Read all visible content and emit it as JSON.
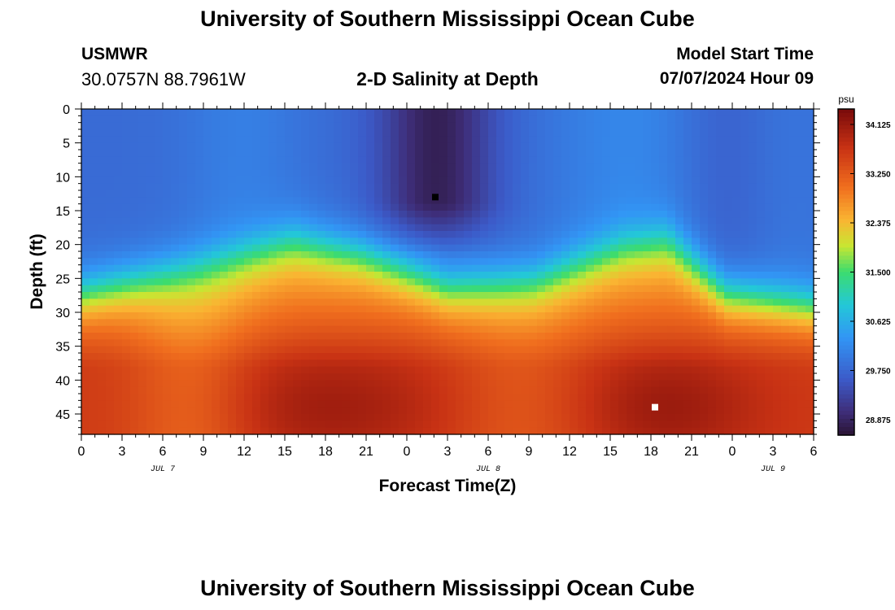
{
  "header": {
    "title": "University of Southern Mississippi Ocean Cube",
    "station_id": "USMWR",
    "station_coords": "30.0757N  88.7961W",
    "plot_title": "2-D Salinity at Depth",
    "start_label": "Model Start Time",
    "start_value": "07/07/2024 Hour 09"
  },
  "footer": {
    "title": "University of Southern Mississippi Ocean Cube"
  },
  "chart_data": {
    "type": "heatmap",
    "title": "2-D Salinity at Depth",
    "xlabel": "Forecast Time(Z)",
    "ylabel": "Depth (ft)",
    "x_ticks": [
      "0",
      "3",
      "6",
      "9",
      "12",
      "15",
      "18",
      "21",
      "0",
      "3",
      "6",
      "9",
      "12",
      "15",
      "18",
      "21",
      "0",
      "3",
      "6"
    ],
    "date_labels": [
      {
        "text": "JUL 7",
        "tick_index": 2
      },
      {
        "text": "JUL 8",
        "tick_index": 10
      },
      {
        "text": "JUL 9",
        "tick_index": 17
      }
    ],
    "y_ticks": [
      0,
      5,
      10,
      15,
      20,
      25,
      30,
      35,
      40,
      45
    ],
    "ylim": [
      0,
      48
    ],
    "y_inverted": true,
    "colorbar": {
      "unit": "psu",
      "ticks": [
        "34.125",
        "33.250",
        "32.375",
        "31.500",
        "30.625",
        "29.750",
        "28.875"
      ],
      "min": 28.6,
      "max": 34.4
    },
    "markers": [
      {
        "label": "min",
        "color": "#000000",
        "x_index": 8.7,
        "depth": 13
      },
      {
        "label": "max",
        "color": "#ffffff",
        "x_index": 14.1,
        "depth": 44
      }
    ],
    "fronts": [
      {
        "t": 0,
        "depth": 27
      },
      {
        "t": 0.15,
        "depth": 23
      },
      {
        "t": 0.29,
        "depth": 19
      },
      {
        "t": 0.38,
        "depth": 21
      },
      {
        "t": 0.5,
        "depth": 26
      },
      {
        "t": 0.62,
        "depth": 25
      },
      {
        "t": 0.74,
        "depth": 20
      },
      {
        "t": 0.8,
        "depth": 19
      },
      {
        "t": 0.88,
        "depth": 27
      },
      {
        "t": 1,
        "depth": 29
      }
    ]
  }
}
